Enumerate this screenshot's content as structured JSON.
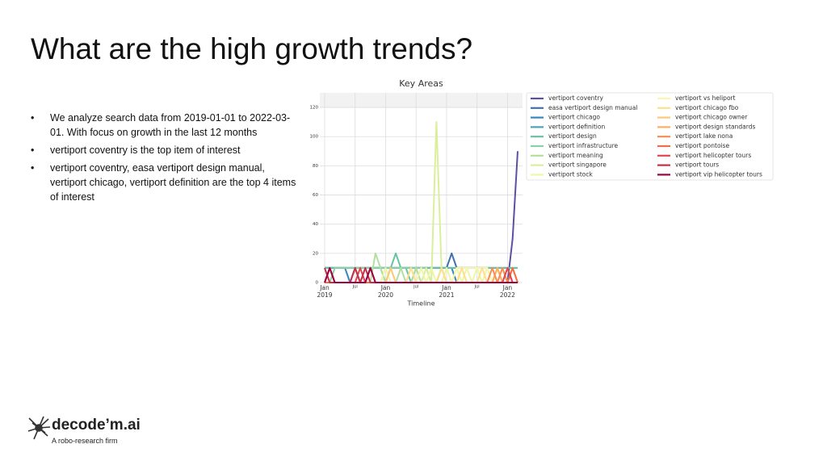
{
  "slide": {
    "title": "What are the high growth trends?",
    "bullets": [
      "We analyze search data from 2019-01-01 to 2022-03-01. With focus on growth in the last 12 months",
      "vertiport coventry is the top item of interest",
      "vertiport coventry, easa vertiport design manual, vertiport chicago, vertiport definition are the top 4 items of interest"
    ],
    "bullet_marker": "•",
    "logo": {
      "name": "decode’m.ai",
      "tagline": "A robo-research firm"
    }
  },
  "chart_data": {
    "type": "line",
    "title": "Key Areas",
    "x_label": "Timeline",
    "x": [
      "2019-01",
      "2019-02",
      "2019-03",
      "2019-04",
      "2019-05",
      "2019-06",
      "2019-07",
      "2019-08",
      "2019-09",
      "2019-10",
      "2019-11",
      "2019-12",
      "2020-01",
      "2020-02",
      "2020-03",
      "2020-04",
      "2020-05",
      "2020-06",
      "2020-07",
      "2020-08",
      "2020-09",
      "2020-10",
      "2020-11",
      "2020-12",
      "2021-01",
      "2021-02",
      "2021-03",
      "2021-04",
      "2021-05",
      "2021-06",
      "2021-07",
      "2021-08",
      "2021-09",
      "2021-10",
      "2021-11",
      "2021-12",
      "2022-01",
      "2022-02",
      "2022-03"
    ],
    "xticks": [
      {
        "value": "2019-01",
        "label": "Jan",
        "year": "2019"
      },
      {
        "value": "2019-07",
        "label": "Jul"
      },
      {
        "value": "2020-01",
        "label": "Jan",
        "year": "2020"
      },
      {
        "value": "2020-07",
        "label": "Jul"
      },
      {
        "value": "2021-01",
        "label": "Jan",
        "year": "2021"
      },
      {
        "value": "2021-07",
        "label": "Jul"
      },
      {
        "value": "2022-01",
        "label": "Jan",
        "year": "2022"
      }
    ],
    "ylim": [
      0,
      130
    ],
    "yticks": [
      0,
      20,
      40,
      60,
      80,
      100,
      120
    ],
    "grid": true,
    "series": [
      {
        "name": "vertiport coventry",
        "color": "#5e4fa2",
        "values": [
          0,
          0,
          0,
          0,
          0,
          0,
          0,
          0,
          0,
          0,
          0,
          0,
          0,
          0,
          0,
          0,
          0,
          0,
          0,
          0,
          0,
          0,
          0,
          0,
          0,
          0,
          0,
          0,
          0,
          0,
          0,
          0,
          0,
          0,
          0,
          0,
          0,
          30,
          90
        ]
      },
      {
        "name": "easa vertiport design manual",
        "color": "#3f6fb0",
        "values": [
          10,
          10,
          10,
          10,
          10,
          10,
          10,
          10,
          10,
          10,
          10,
          10,
          10,
          10,
          10,
          10,
          10,
          10,
          10,
          10,
          10,
          10,
          10,
          10,
          10,
          20,
          10,
          10,
          10,
          10,
          10,
          10,
          10,
          10,
          10,
          10,
          10,
          0,
          0
        ]
      },
      {
        "name": "vertiport chicago",
        "color": "#3288bd",
        "values": [
          10,
          10,
          10,
          10,
          10,
          0,
          10,
          10,
          10,
          10,
          10,
          10,
          10,
          10,
          10,
          10,
          10,
          10,
          10,
          10,
          10,
          10,
          10,
          10,
          10,
          10,
          0,
          0,
          0,
          0,
          0,
          0,
          0,
          0,
          0,
          0,
          0,
          0,
          0
        ]
      },
      {
        "name": "vertiport definition",
        "color": "#4ba4b1",
        "values": [
          10,
          10,
          10,
          10,
          10,
          10,
          10,
          10,
          10,
          10,
          10,
          10,
          10,
          10,
          10,
          10,
          10,
          10,
          10,
          10,
          10,
          10,
          10,
          10,
          10,
          10,
          10,
          10,
          10,
          10,
          10,
          10,
          10,
          10,
          10,
          10,
          10,
          10,
          10
        ]
      },
      {
        "name": "vertiport design",
        "color": "#66c2a5",
        "values": [
          10,
          10,
          10,
          10,
          10,
          10,
          10,
          10,
          10,
          10,
          10,
          10,
          0,
          10,
          20,
          10,
          10,
          0,
          10,
          10,
          10,
          10,
          10,
          10,
          10,
          10,
          10,
          10,
          10,
          10,
          10,
          10,
          10,
          10,
          10,
          10,
          10,
          10,
          10
        ]
      },
      {
        "name": "vertiport infrastructure",
        "color": "#8ad0a4",
        "values": [
          0,
          0,
          10,
          10,
          10,
          10,
          10,
          10,
          10,
          10,
          10,
          10,
          10,
          10,
          10,
          10,
          10,
          10,
          10,
          10,
          10,
          0,
          0,
          10,
          0,
          0,
          0,
          0,
          0,
          0,
          0,
          0,
          0,
          0,
          0,
          0,
          0,
          0,
          0
        ]
      },
      {
        "name": "vertiport meaning",
        "color": "#b1df9f",
        "values": [
          0,
          0,
          0,
          0,
          0,
          0,
          0,
          0,
          0,
          0,
          20,
          10,
          0,
          0,
          0,
          10,
          0,
          0,
          10,
          0,
          0,
          0,
          0,
          0,
          0,
          0,
          0,
          0,
          0,
          0,
          0,
          0,
          0,
          0,
          0,
          0,
          0,
          0,
          0
        ]
      },
      {
        "name": "vertiport singapore",
        "color": "#d9ef9b",
        "values": [
          0,
          0,
          0,
          0,
          0,
          0,
          0,
          0,
          0,
          0,
          0,
          0,
          0,
          0,
          0,
          0,
          0,
          0,
          0,
          0,
          10,
          0,
          110,
          10,
          0,
          0,
          0,
          0,
          0,
          0,
          0,
          0,
          0,
          0,
          0,
          0,
          0,
          0,
          0
        ]
      },
      {
        "name": "vertiport stock",
        "color": "#eef7a6",
        "values": [
          0,
          0,
          0,
          0,
          0,
          0,
          0,
          0,
          0,
          0,
          0,
          0,
          10,
          0,
          0,
          0,
          0,
          0,
          0,
          10,
          0,
          10,
          0,
          0,
          10,
          0,
          10,
          0,
          10,
          0,
          10,
          0,
          10,
          0,
          10,
          0,
          0,
          0,
          0
        ]
      },
      {
        "name": "vertiport vs heliport",
        "color": "#fdf6b0",
        "values": [
          0,
          0,
          0,
          0,
          0,
          0,
          0,
          0,
          0,
          0,
          0,
          0,
          0,
          0,
          0,
          0,
          0,
          0,
          0,
          0,
          0,
          0,
          0,
          0,
          0,
          0,
          10,
          10,
          10,
          10,
          10,
          10,
          10,
          0,
          0,
          0,
          0,
          0,
          0
        ]
      },
      {
        "name": "vertiport chicago fbo",
        "color": "#fee08b",
        "values": [
          0,
          0,
          0,
          0,
          0,
          0,
          0,
          0,
          0,
          0,
          0,
          0,
          0,
          0,
          0,
          0,
          0,
          10,
          0,
          0,
          0,
          0,
          0,
          10,
          0,
          0,
          0,
          10,
          0,
          0,
          0,
          10,
          0,
          0,
          0,
          10,
          0,
          0,
          0
        ]
      },
      {
        "name": "vertiport chicago owner",
        "color": "#fdc877",
        "values": [
          0,
          0,
          0,
          0,
          0,
          0,
          0,
          0,
          0,
          0,
          0,
          0,
          0,
          10,
          0,
          0,
          0,
          0,
          0,
          0,
          0,
          0,
          0,
          0,
          0,
          0,
          0,
          0,
          0,
          0,
          0,
          0,
          0,
          0,
          10,
          0,
          10,
          0,
          0
        ]
      },
      {
        "name": "vertiport design standards",
        "color": "#fdae61",
        "values": [
          0,
          0,
          0,
          0,
          0,
          0,
          0,
          0,
          0,
          0,
          0,
          0,
          0,
          0,
          0,
          0,
          0,
          0,
          0,
          0,
          0,
          0,
          0,
          0,
          0,
          0,
          0,
          0,
          0,
          0,
          0,
          0,
          0,
          0,
          10,
          0,
          0,
          10,
          0
        ]
      },
      {
        "name": "vertiport lake nona",
        "color": "#f88d52",
        "values": [
          0,
          0,
          0,
          0,
          0,
          0,
          10,
          0,
          0,
          0,
          0,
          0,
          0,
          0,
          0,
          0,
          0,
          0,
          0,
          0,
          0,
          0,
          0,
          0,
          0,
          0,
          0,
          0,
          0,
          0,
          0,
          0,
          0,
          10,
          0,
          10,
          0,
          0,
          0
        ]
      },
      {
        "name": "vertiport pontoise",
        "color": "#f46d43",
        "values": [
          0,
          0,
          0,
          0,
          0,
          0,
          0,
          0,
          0,
          0,
          0,
          0,
          0,
          0,
          0,
          0,
          0,
          0,
          0,
          0,
          0,
          0,
          0,
          0,
          0,
          0,
          0,
          0,
          0,
          0,
          0,
          0,
          0,
          0,
          0,
          0,
          0,
          10,
          0
        ]
      },
      {
        "name": "vertiport helicopter tours",
        "color": "#dc484c",
        "values": [
          0,
          10,
          0,
          0,
          0,
          0,
          0,
          10,
          0,
          10,
          0,
          0,
          0,
          0,
          0,
          0,
          0,
          0,
          0,
          0,
          0,
          0,
          0,
          0,
          0,
          0,
          0,
          0,
          0,
          0,
          0,
          0,
          0,
          0,
          0,
          0,
          10,
          0,
          0
        ]
      },
      {
        "name": "vertiport tours",
        "color": "#c0304a",
        "values": [
          10,
          0,
          0,
          0,
          0,
          0,
          10,
          0,
          10,
          0,
          0,
          0,
          0,
          0,
          0,
          0,
          0,
          0,
          0,
          0,
          0,
          0,
          0,
          0,
          0,
          0,
          0,
          0,
          0,
          0,
          0,
          0,
          0,
          0,
          0,
          0,
          0,
          0,
          0
        ]
      },
      {
        "name": "vertiport vip helicopter tours",
        "color": "#9e0142",
        "values": [
          0,
          10,
          0,
          0,
          0,
          0,
          0,
          0,
          0,
          10,
          0,
          0,
          0,
          0,
          0,
          0,
          0,
          0,
          0,
          0,
          0,
          0,
          0,
          0,
          0,
          0,
          0,
          0,
          0,
          0,
          0,
          0,
          0,
          0,
          0,
          0,
          0,
          0,
          0
        ]
      }
    ]
  }
}
